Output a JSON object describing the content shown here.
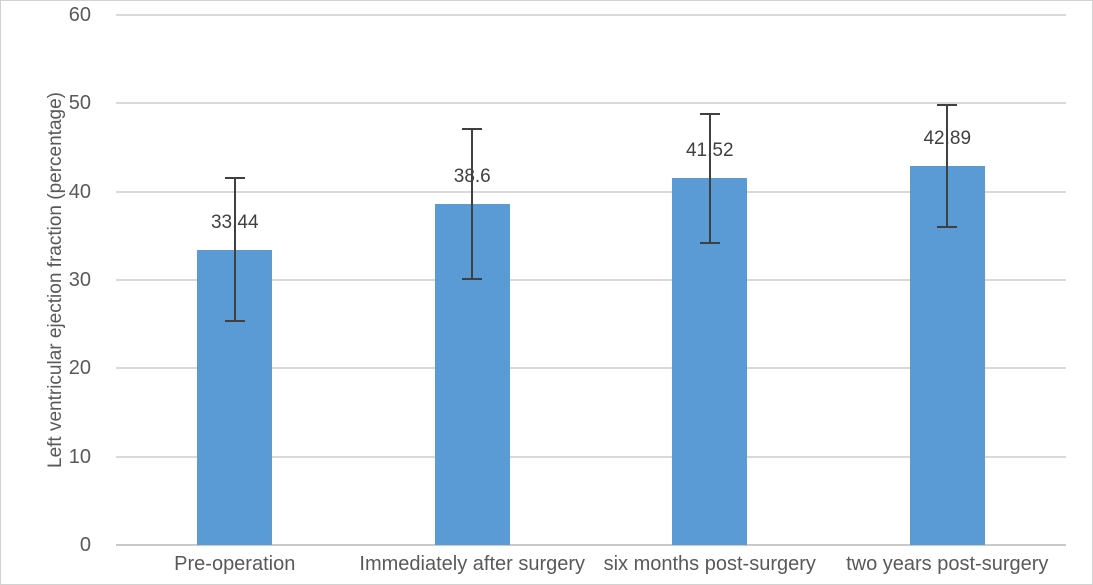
{
  "chart_data": {
    "type": "bar",
    "categories": [
      "Pre-operation",
      "Immediately after surgery",
      "six months post-surgery",
      "two years post-surgery"
    ],
    "values": [
      33.44,
      38.6,
      41.52,
      42.89
    ],
    "data_labels": [
      "33.44",
      "38.6",
      "41.52",
      "42.89"
    ],
    "error_bars": [
      8.1,
      8.5,
      7.3,
      6.9
    ],
    "xlabel": "",
    "ylabel": "Left ventricular ejection fraction (percentage)",
    "ylim": [
      0,
      60
    ],
    "yticks": [
      0,
      10,
      20,
      30,
      40,
      50,
      60
    ],
    "grid": true,
    "legend": false,
    "colors": {
      "bar": "#5b9bd5",
      "error_bar": "#404040",
      "gridline": "#d9d9d9",
      "axis_line": "#c9c9c9",
      "axis_text": "#595959",
      "data_label_text": "#404040",
      "chart_border": "#d2d2d2",
      "background": "#ffffff"
    }
  }
}
